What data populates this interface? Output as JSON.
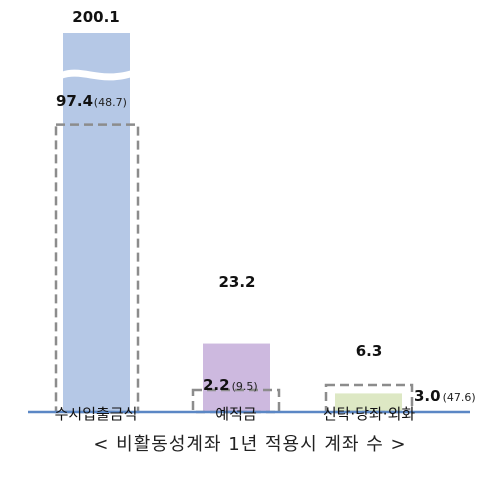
{
  "chart_data": {
    "type": "bar",
    "categories": [
      "수시입출금식",
      "예적금",
      "신탁·당좌·외화"
    ],
    "series": [
      {
        "values": [
          200.1,
          23.2,
          6.3
        ],
        "colors": [
          "#b5c8e6",
          "#cdb9df",
          "#dde8c4"
        ]
      },
      {
        "values": [
          97.4,
          2.2,
          3.0
        ],
        "ratios": [
          "(48.7)",
          "(9.5)",
          "(47.6)"
        ]
      }
    ],
    "value_labels": [
      "200.1",
      "23.2",
      "6.3"
    ],
    "dashed_labels": [
      "97.4",
      "2.2",
      "3.0"
    ],
    "axis_break": true,
    "baseline_color": "#5b87c5",
    "dashed_color": "#8c8c8c"
  },
  "caption": "< 비활동성계좌 1년 적용시 계좌 수 >"
}
